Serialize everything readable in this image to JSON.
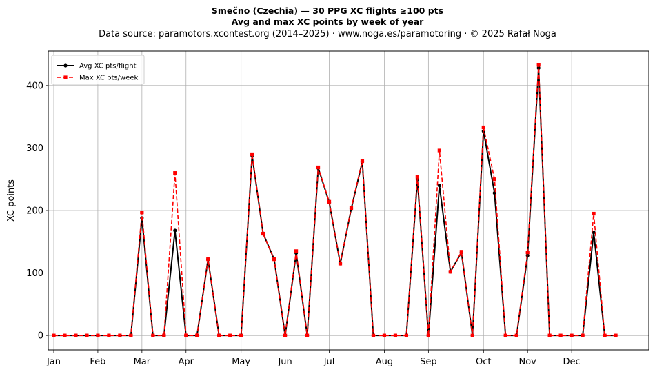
{
  "chart_data": {
    "type": "line",
    "title_line1": "Smečno (Czechia)  —  30 PPG XC flights ≥100 pts",
    "title_line2": "Avg and max XC points by week of year",
    "subtitle": "Data source: paramotors.xcontest.org (2014–2025)  ·  www.noga.es/paramotoring  ·  © 2025 Rafał Noga",
    "ylabel": "XC points",
    "xlabel": "",
    "xlim": [
      -0.5,
      54
    ],
    "ylim": [
      -23,
      455
    ],
    "yticks": [
      0,
      100,
      200,
      300,
      400
    ],
    "grid": true,
    "legend_position": "upper-left",
    "month_ticks": [
      {
        "label": "Jan",
        "week": 0
      },
      {
        "label": "Feb",
        "week": 4
      },
      {
        "label": "Mar",
        "week": 8
      },
      {
        "label": "Apr",
        "week": 12
      },
      {
        "label": "May",
        "week": 17
      },
      {
        "label": "Jun",
        "week": 21
      },
      {
        "label": "Jul",
        "week": 25
      },
      {
        "label": "Aug",
        "week": 30
      },
      {
        "label": "Sep",
        "week": 34
      },
      {
        "label": "Oct",
        "week": 39
      },
      {
        "label": "Nov",
        "week": 43
      },
      {
        "label": "Dec",
        "week": 47
      }
    ],
    "weeks": [
      0,
      1,
      2,
      3,
      4,
      5,
      6,
      7,
      8,
      9,
      10,
      11,
      12,
      13,
      14,
      15,
      16,
      17,
      18,
      19,
      20,
      21,
      22,
      23,
      24,
      25,
      26,
      27,
      28,
      29,
      30,
      31,
      32,
      33,
      34,
      35,
      36,
      37,
      38,
      39,
      40,
      41,
      42,
      43,
      44,
      45,
      46,
      47,
      48,
      49,
      50,
      51
    ],
    "series": [
      {
        "name": "Avg XC pts/flight",
        "color": "#000000",
        "style": "solid",
        "marker": "circle",
        "values": [
          0,
          0,
          0,
          0,
          0,
          0,
          0,
          0,
          188,
          0,
          0,
          168,
          0,
          0,
          122,
          0,
          0,
          0,
          288,
          163,
          122,
          0,
          132,
          0,
          268,
          213,
          115,
          203,
          278,
          0,
          0,
          0,
          0,
          250,
          0,
          240,
          102,
          133,
          0,
          327,
          228,
          0,
          0,
          128,
          428,
          0,
          0,
          0,
          0,
          165,
          0,
          0
        ]
      },
      {
        "name": "Max XC pts/week",
        "color": "#ff0000",
        "style": "dashed",
        "marker": "square",
        "values": [
          0,
          0,
          0,
          0,
          0,
          0,
          0,
          0,
          197,
          0,
          0,
          260,
          0,
          0,
          122,
          0,
          0,
          0,
          290,
          163,
          122,
          0,
          135,
          0,
          269,
          214,
          115,
          204,
          279,
          0,
          0,
          0,
          0,
          254,
          0,
          296,
          102,
          134,
          0,
          333,
          250,
          0,
          0,
          133,
          433,
          0,
          0,
          0,
          0,
          195,
          0,
          0
        ]
      }
    ]
  }
}
